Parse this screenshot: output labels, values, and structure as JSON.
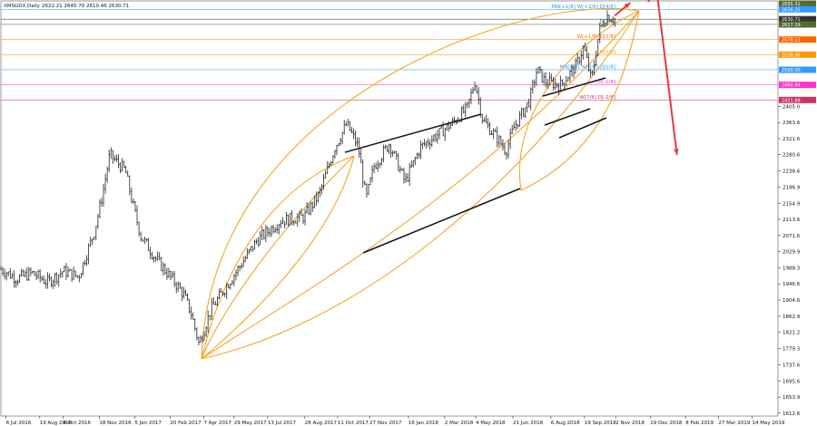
{
  "header": {
    "symbol": "XMSGDX,Daily",
    "ohlc": "2622.21 2645.70 2610.46 2630.71"
  },
  "chart_data": {
    "type": "candlestick",
    "x_ticks": [
      "6 Jul 2016",
      "19 Aug 2016",
      "4 Oct 2016",
      "18 Nov 2016",
      "5 Jan 2017",
      "20 Feb 2017",
      "7 Apr 2017",
      "29 May 2017",
      "13 Jul 2017",
      "28 Aug 2017",
      "11 Oct 2017",
      "27 Nov 2017",
      "16 Jan 2018",
      "2 Mar 2018",
      "4 May 2018",
      "21 Jun 2018",
      "6 Aug 2018",
      "19 Sep 2018",
      "2 Nov 2018",
      "19 Dec 2018",
      "8 Feb 2019",
      "27 Mar 2019",
      "14 May 2019"
    ],
    "y_ticks": [
      1612.6,
      1653.9,
      1695.6,
      1737.6,
      1779.3,
      1821.2,
      1862.9,
      1904.6,
      1946.6,
      1988.3,
      2029.9,
      2071.6,
      2113.6,
      2154.9,
      2196.9,
      2238.6,
      2280.6,
      2321.6,
      2363.6,
      2405.0
    ],
    "ylim": [
      1605,
      2678
    ],
    "current_price": 2630.71,
    "levels": [
      {
        "label": "D[+1/8]",
        "value": 2851.56,
        "color": "#9933cc",
        "badge": "2851.56"
      },
      {
        "label": "MN[+2/8] D[+8/8]",
        "value": 2812.5,
        "color": "#3399ff",
        "badge": "2812.50"
      },
      {
        "label": "D[7/8]",
        "value": 2773.44,
        "color": "#ff9900",
        "badge": "2773.44"
      },
      {
        "label": "D[6/8]",
        "value": 2734.38,
        "color": "#ff6600",
        "badge": "2734.38"
      },
      {
        "label": "D[5/8]",
        "value": 2695.31,
        "color": "#556b2f",
        "badge": "2695.31"
      },
      {
        "label": "MN[+1/8] W[+2/8] D[4/8]",
        "value": 2656.25,
        "color": "#3399ff",
        "badge": "2656.25"
      },
      {
        "label": "",
        "value": 2630.71,
        "color": "#333333",
        "badge": "2630.71"
      },
      {
        "label": "D[3/8]",
        "value": 2617.19,
        "color": "#556b2f",
        "badge": "2617.19"
      },
      {
        "label": "W[+1/8] D[2/8]",
        "value": 2578.13,
        "color": "#ff6600",
        "badge": "2578.13"
      },
      {
        "label": "D[1/8]",
        "value": 2539.06,
        "color": "#ff9900",
        "badge": "2539.06"
      },
      {
        "label": "MN[8/8] W[8/8] D[0/8]",
        "value": 2500.0,
        "color": "#3399ff",
        "badge": "2500.00"
      },
      {
        "label": "D[-1/8]",
        "value": 2460.94,
        "color": "#ff33cc",
        "badge": "2460.94"
      },
      {
        "label": "W[7/8] D[-2/8]",
        "value": 2421.88,
        "color": "#cc3366",
        "badge": "2421.88"
      }
    ],
    "price_path": [
      [
        0,
        1985
      ],
      [
        0.02,
        1960
      ],
      [
        0.04,
        1975
      ],
      [
        0.06,
        1950
      ],
      [
        0.08,
        1980
      ],
      [
        0.1,
        1965
      ],
      [
        0.12,
        2080
      ],
      [
        0.13,
        2170
      ],
      [
        0.14,
        2280
      ],
      [
        0.16,
        2240
      ],
      [
        0.17,
        2150
      ],
      [
        0.18,
        2070
      ],
      [
        0.2,
        2010
      ],
      [
        0.22,
        1960
      ],
      [
        0.235,
        1920
      ],
      [
        0.245,
        1870
      ],
      [
        0.255,
        1790
      ],
      [
        0.27,
        1880
      ],
      [
        0.3,
        1970
      ],
      [
        0.33,
        2060
      ],
      [
        0.36,
        2110
      ],
      [
        0.39,
        2120
      ],
      [
        0.41,
        2180
      ],
      [
        0.43,
        2300
      ],
      [
        0.445,
        2360
      ],
      [
        0.46,
        2300
      ],
      [
        0.47,
        2165
      ],
      [
        0.48,
        2250
      ],
      [
        0.5,
        2310
      ],
      [
        0.52,
        2210
      ],
      [
        0.54,
        2300
      ],
      [
        0.56,
        2330
      ],
      [
        0.58,
        2360
      ],
      [
        0.6,
        2400
      ],
      [
        0.61,
        2470
      ],
      [
        0.62,
        2370
      ],
      [
        0.64,
        2320
      ],
      [
        0.65,
        2290
      ],
      [
        0.66,
        2350
      ],
      [
        0.68,
        2420
      ],
      [
        0.69,
        2500
      ],
      [
        0.7,
        2470
      ],
      [
        0.72,
        2460
      ],
      [
        0.74,
        2510
      ],
      [
        0.75,
        2560
      ],
      [
        0.76,
        2470
      ],
      [
        0.77,
        2600
      ],
      [
        0.78,
        2640
      ],
      [
        0.79,
        2631
      ]
    ],
    "forecast": [
      {
        "x": 0.79,
        "y": 2640
      },
      {
        "x": 0.81,
        "y": 2810
      },
      {
        "x": 0.835,
        "y": 2850
      },
      {
        "x": 0.87,
        "y": 2280
      }
    ]
  }
}
